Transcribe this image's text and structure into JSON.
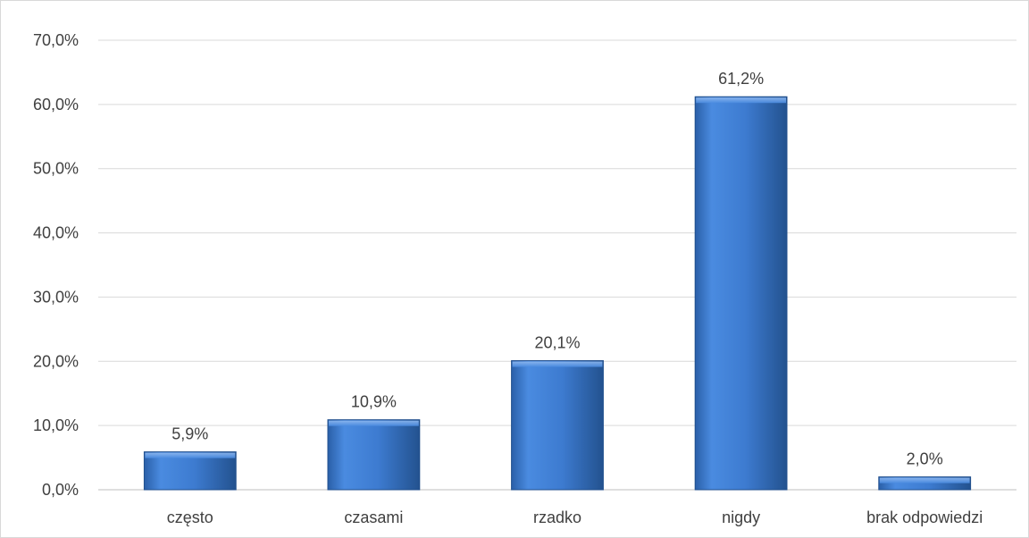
{
  "chart_data": {
    "type": "bar",
    "categories": [
      "często",
      "czasami",
      "rzadko",
      "nigdy",
      "brak odpowiedzi"
    ],
    "values": [
      5.9,
      10.9,
      20.1,
      61.2,
      2.0
    ],
    "value_labels": [
      "5,9%",
      "10,9%",
      "20,1%",
      "61,2%",
      "2,0%"
    ],
    "ylim": [
      0,
      70
    ],
    "yticks": [
      0,
      10,
      20,
      30,
      40,
      50,
      60,
      70
    ],
    "ytick_labels": [
      "0,0%",
      "10,0%",
      "20,0%",
      "30,0%",
      "40,0%",
      "50,0%",
      "60,0%",
      "70,0%"
    ],
    "grid": true,
    "legend": "none",
    "bar_color": "#3d7bd0"
  }
}
